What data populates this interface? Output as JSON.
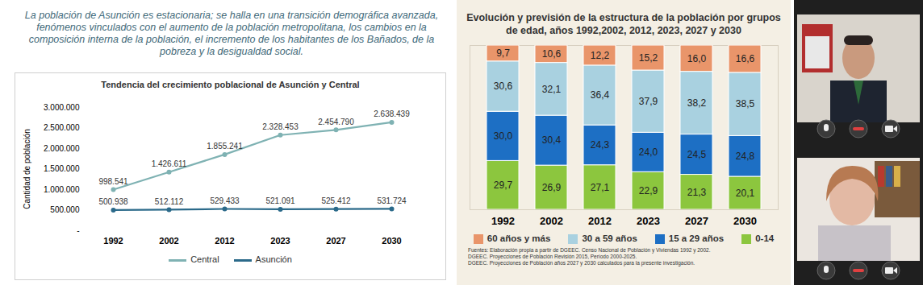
{
  "text": "La población de Asunción es estacionaria;  se halla en una transición demográfica avanzada, fenómenos vinculados con el aumento de la población metropolitana, los cambios en la composición interna de la población, el incremento de los habitantes de los Bañados, de la pobreza y la desigualdad social.",
  "chart_data": [
    {
      "type": "line",
      "title": "Tendencia del crecimiento poblacional de Asunción y Central",
      "y_label": "Cantidad de población",
      "categories": [
        "1992",
        "2002",
        "2012",
        "2023",
        "2027",
        "2030"
      ],
      "series": [
        {
          "name": "Central",
          "color": "#7fb2b3",
          "marker": "circle",
          "values": [
            998541,
            1426611,
            1855241,
            2328453,
            2454790,
            2638439
          ],
          "value_labels": [
            "998.541",
            "1.426.611",
            "1.855.241",
            "2.328.453",
            "2.454.790",
            "2.638.439"
          ]
        },
        {
          "name": "Asunción",
          "color": "#2b6a8a",
          "marker": "circle",
          "values": [
            500938,
            512112,
            529433,
            521091,
            525412,
            531724
          ],
          "value_labels": [
            "500.938",
            "512.112",
            "529.433",
            "521.091",
            "525.412",
            "531.724"
          ]
        }
      ],
      "ylim": [
        0,
        3000000
      ],
      "yticks": [
        {
          "value": 0,
          "label": "-"
        },
        {
          "value": 500000,
          "label": "500.000"
        },
        {
          "value": 1000000,
          "label": "1.000.000"
        },
        {
          "value": 1500000,
          "label": "1.500.000"
        },
        {
          "value": 2000000,
          "label": "2.000.000"
        },
        {
          "value": 2500000,
          "label": "2.500.000"
        },
        {
          "value": 3000000,
          "label": "3.000.000"
        }
      ],
      "grid": false,
      "legend": "bottom",
      "data_labels": true
    },
    {
      "type": "bar",
      "stacked": true,
      "title": "Evolución y previsión de la estructura de la población por grupos de edad, años 1992,2002, 2012, 2023, 2027 y 2030",
      "categories": [
        "1992",
        "2002",
        "2012",
        "2023",
        "2027",
        "2030"
      ],
      "series": [
        {
          "name": "0-14",
          "color": "#8cc63e",
          "values": [
            29.7,
            26.9,
            27.1,
            22.9,
            21.3,
            20.1
          ],
          "value_labels": [
            "29,7",
            "26,9",
            "27,1",
            "22,9",
            "21,3",
            "20,1"
          ]
        },
        {
          "name": "15 a 29 años",
          "color": "#1d6fc4",
          "values": [
            30.0,
            30.4,
            24.3,
            24.0,
            24.5,
            24.8
          ],
          "value_labels": [
            "30,0",
            "30,4",
            "24,3",
            "24,0",
            "24,5",
            "24,8"
          ]
        },
        {
          "name": "30 a 59 años",
          "color": "#a9d1e0",
          "values": [
            30.6,
            32.1,
            36.4,
            37.9,
            38.2,
            38.5
          ],
          "value_labels": [
            "30,6",
            "32,1",
            "36,4",
            "37,9",
            "38,2",
            "38,5"
          ]
        },
        {
          "name": "60 años y más",
          "color": "#e9956a",
          "values": [
            9.7,
            10.6,
            12.2,
            15.2,
            16.0,
            16.6
          ],
          "value_labels": [
            "9,7",
            "10,6",
            "12,2",
            "15,2",
            "16,0",
            "16,6"
          ]
        }
      ],
      "ylim": [
        0,
        100
      ],
      "tick_labels": "x",
      "legend": "bottom",
      "data_labels": true,
      "source": [
        "Fuentes: Elaboración propia a partir de DGEEC. Censo Nacional de Población y Viviendas 1992 y 2002.",
        "DGEEC. Proyecciones de Población Revisión 2015, Período 2000-2025.",
        "DGEEC. Proyecciones de Población años 2027 y 2030 calculados para la presente investigación."
      ]
    }
  ]
}
